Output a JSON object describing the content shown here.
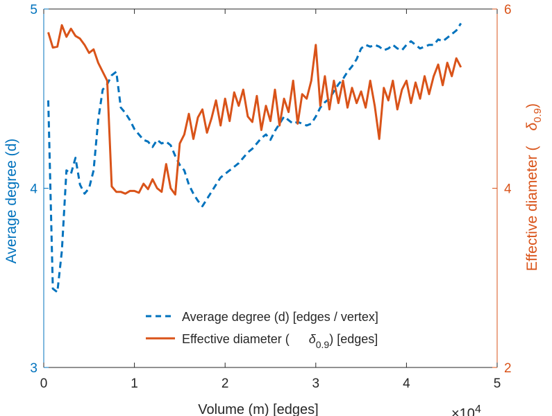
{
  "chart_data": {
    "type": "line",
    "xlabel": "Volume (m) [edges]",
    "x_exponent_base": "×10",
    "x_exponent": "4",
    "xlim": [
      0,
      5
    ],
    "xticks": [
      "0",
      "1",
      "2",
      "3",
      "4",
      "5"
    ],
    "ylabel_left": "Average degree (d)",
    "ylim_left": [
      3,
      5
    ],
    "yticks_left": [
      "3",
      "4",
      "5"
    ],
    "ylabel_right_prefix": "Effective diameter (",
    "ylabel_right_symbol": "δ",
    "ylabel_right_sub": "0.9",
    "ylabel_right_suffix": ")",
    "ylim_right": [
      2,
      6
    ],
    "yticks_right": [
      "2",
      "4",
      "6"
    ],
    "colors": {
      "left": "#0072BD",
      "right": "#D95319"
    },
    "legend": {
      "position": "bottom-right",
      "entries": [
        {
          "label": "Average degree (d) [edges / vertex]"
        },
        {
          "prefix": "Effective diameter (",
          "symbol": "δ",
          "sub": "0.9",
          "suffix": ") [edges]"
        }
      ]
    },
    "series": [
      {
        "name": "Average degree (d) [edges / vertex]",
        "axis": "left",
        "style": "dashed",
        "x": [
          0.05,
          0.1,
          0.15,
          0.2,
          0.25,
          0.3,
          0.35,
          0.4,
          0.45,
          0.5,
          0.55,
          0.6,
          0.65,
          0.7,
          0.75,
          0.8,
          0.85,
          0.9,
          0.95,
          1.0,
          1.05,
          1.1,
          1.15,
          1.2,
          1.25,
          1.3,
          1.35,
          1.4,
          1.45,
          1.5,
          1.55,
          1.6,
          1.65,
          1.7,
          1.75,
          1.8,
          1.85,
          1.9,
          1.95,
          2.0,
          2.05,
          2.1,
          2.15,
          2.2,
          2.25,
          2.3,
          2.35,
          2.4,
          2.45,
          2.5,
          2.55,
          2.6,
          2.65,
          2.7,
          2.75,
          2.8,
          2.85,
          2.9,
          2.95,
          3.0,
          3.05,
          3.1,
          3.15,
          3.2,
          3.25,
          3.3,
          3.35,
          3.4,
          3.45,
          3.5,
          3.55,
          3.6,
          3.65,
          3.7,
          3.75,
          3.8,
          3.85,
          3.9,
          3.95,
          4.0,
          4.05,
          4.1,
          4.15,
          4.2,
          4.25,
          4.3,
          4.35,
          4.4,
          4.45,
          4.5,
          4.55,
          4.6
        ],
        "values": [
          4.49,
          3.44,
          3.42,
          3.65,
          4.1,
          4.08,
          4.17,
          4.02,
          3.97,
          4.0,
          4.1,
          4.38,
          4.55,
          4.58,
          4.63,
          4.65,
          4.45,
          4.42,
          4.38,
          4.33,
          4.3,
          4.27,
          4.26,
          4.23,
          4.27,
          4.25,
          4.26,
          4.24,
          4.18,
          4.13,
          4.1,
          4.02,
          3.97,
          3.93,
          3.9,
          3.94,
          3.98,
          4.02,
          4.06,
          4.08,
          4.1,
          4.12,
          4.14,
          4.17,
          4.2,
          4.22,
          4.25,
          4.28,
          4.3,
          4.27,
          4.32,
          4.36,
          4.4,
          4.38,
          4.36,
          4.37,
          4.36,
          4.35,
          4.36,
          4.4,
          4.45,
          4.48,
          4.5,
          4.54,
          4.58,
          4.61,
          4.65,
          4.68,
          4.72,
          4.78,
          4.8,
          4.79,
          4.8,
          4.79,
          4.77,
          4.78,
          4.8,
          4.78,
          4.77,
          4.8,
          4.82,
          4.8,
          4.78,
          4.79,
          4.8,
          4.8,
          4.83,
          4.82,
          4.84,
          4.86,
          4.88,
          4.92
        ]
      },
      {
        "name": "Effective diameter (δ0.9) [edges]",
        "axis": "right",
        "style": "solid",
        "x": [
          0.05,
          0.1,
          0.15,
          0.2,
          0.25,
          0.3,
          0.35,
          0.4,
          0.45,
          0.5,
          0.55,
          0.6,
          0.65,
          0.7,
          0.75,
          0.8,
          0.85,
          0.9,
          0.95,
          1.0,
          1.05,
          1.1,
          1.15,
          1.2,
          1.25,
          1.3,
          1.35,
          1.4,
          1.45,
          1.5,
          1.55,
          1.6,
          1.65,
          1.7,
          1.75,
          1.8,
          1.85,
          1.9,
          1.95,
          2.0,
          2.05,
          2.1,
          2.15,
          2.2,
          2.25,
          2.3,
          2.35,
          2.4,
          2.45,
          2.5,
          2.55,
          2.6,
          2.65,
          2.7,
          2.75,
          2.8,
          2.85,
          2.9,
          2.95,
          3.0,
          3.05,
          3.1,
          3.15,
          3.2,
          3.25,
          3.3,
          3.35,
          3.4,
          3.45,
          3.5,
          3.55,
          3.6,
          3.65,
          3.7,
          3.75,
          3.8,
          3.85,
          3.9,
          3.95,
          4.0,
          4.05,
          4.1,
          4.15,
          4.2,
          4.25,
          4.3,
          4.35,
          4.4,
          4.45,
          4.5,
          4.55,
          4.6
        ],
        "values": [
          5.74,
          5.57,
          5.58,
          5.82,
          5.69,
          5.78,
          5.7,
          5.67,
          5.6,
          5.51,
          5.55,
          5.4,
          5.3,
          5.2,
          4.02,
          3.96,
          3.96,
          3.94,
          3.97,
          3.97,
          3.95,
          4.05,
          3.99,
          4.1,
          4.0,
          3.96,
          4.27,
          4.0,
          3.93,
          4.5,
          4.6,
          4.83,
          4.55,
          4.79,
          4.88,
          4.62,
          4.78,
          4.98,
          4.7,
          5.0,
          4.75,
          5.07,
          4.92,
          5.1,
          4.8,
          4.74,
          5.03,
          4.65,
          4.92,
          4.75,
          5.1,
          4.7,
          5.0,
          4.85,
          5.2,
          4.72,
          5.05,
          5.0,
          5.2,
          5.6,
          4.92,
          5.25,
          4.88,
          5.2,
          4.95,
          5.2,
          4.9,
          5.12,
          4.95,
          5.08,
          4.9,
          5.2,
          4.92,
          4.55,
          5.12,
          4.98,
          5.2,
          4.88,
          5.1,
          5.2,
          4.95,
          5.18,
          5.0,
          5.25,
          5.05,
          5.25,
          5.38,
          5.15,
          5.4,
          5.25,
          5.45,
          5.35
        ]
      }
    ]
  }
}
